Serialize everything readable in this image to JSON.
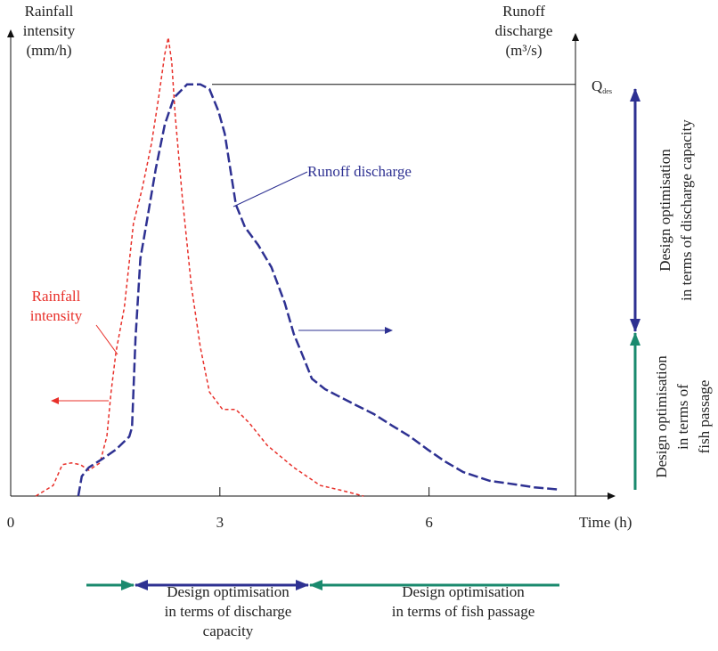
{
  "chart_data": {
    "type": "line",
    "y_label": [
      "Rainfall",
      "intensity",
      "(mm/h)"
    ],
    "y2_label": [
      "Runoff",
      "discharge",
      "(m³/s)"
    ],
    "x_label": "Time (h)",
    "xlim": [
      0,
      8.1
    ],
    "xticks": [
      0,
      3,
      6
    ],
    "ylim": [
      0,
      100
    ],
    "y2lim": [
      0,
      100
    ],
    "series": [
      {
        "name": "Rainfall intensity",
        "color": "#e8302a",
        "axis": "y",
        "x": [
          0.36,
          0.61,
          0.74,
          0.87,
          1.0,
          1.12,
          1.28,
          1.38,
          1.44,
          1.51,
          1.63,
          1.76,
          1.89,
          2.02,
          2.12,
          2.21,
          2.26,
          2.31,
          2.36,
          2.46,
          2.59,
          2.72,
          2.85,
          3.04,
          3.23,
          3.42,
          3.68,
          4.06,
          4.44,
          4.7,
          5.06
        ],
        "values": [
          0,
          2.3,
          6.8,
          7.2,
          6.8,
          5.6,
          7.2,
          13,
          22.6,
          31.3,
          41,
          59.2,
          67,
          76.6,
          86.3,
          96,
          99.6,
          94.2,
          82.6,
          65.2,
          45.8,
          32.3,
          22.6,
          18.8,
          18.8,
          15.9,
          11,
          6.2,
          2.3,
          1.4,
          0
        ]
      },
      {
        "name": "Runoff discharge",
        "color": "#2e3192",
        "axis": "y2",
        "x": [
          0.97,
          1.02,
          1.12,
          1.32,
          1.51,
          1.7,
          1.74,
          1.79,
          1.86,
          1.95,
          2.08,
          2.21,
          2.34,
          2.53,
          2.72,
          2.85,
          2.98,
          3.07,
          3.17,
          3.23,
          3.36,
          3.55,
          3.74,
          3.93,
          4.06,
          4.19,
          4.32,
          4.51,
          4.7,
          4.96,
          5.21,
          5.47,
          5.72,
          5.98,
          6.23,
          6.49,
          6.87,
          7.25,
          7.51,
          7.87
        ],
        "values": [
          0,
          4.3,
          6.2,
          8.1,
          10.1,
          12.9,
          14.9,
          34.2,
          51.6,
          59.4,
          71,
          80.7,
          86.5,
          89.4,
          89.4,
          88.4,
          83.6,
          78.7,
          69.1,
          63.3,
          58.4,
          54.5,
          49.7,
          42,
          35.2,
          30.4,
          25.5,
          23.2,
          21.7,
          19.7,
          17.8,
          15.3,
          13,
          10.1,
          7.5,
          5.2,
          3.3,
          2.5,
          1.9,
          1.4
        ]
      }
    ],
    "reference_line": {
      "symbol": "Q",
      "subscript": "des",
      "value": 89.4
    },
    "side_labels": [
      [
        "Design optimisation",
        "in terms of discharge capacity"
      ],
      [
        "Design optimisation",
        "in terms of",
        "fish passage"
      ]
    ],
    "bottom_labels": [
      [
        "Design optimisation",
        "in terms of discharge",
        "capacity"
      ],
      [
        "Design optimisation",
        "in terms of fish passage"
      ]
    ]
  }
}
